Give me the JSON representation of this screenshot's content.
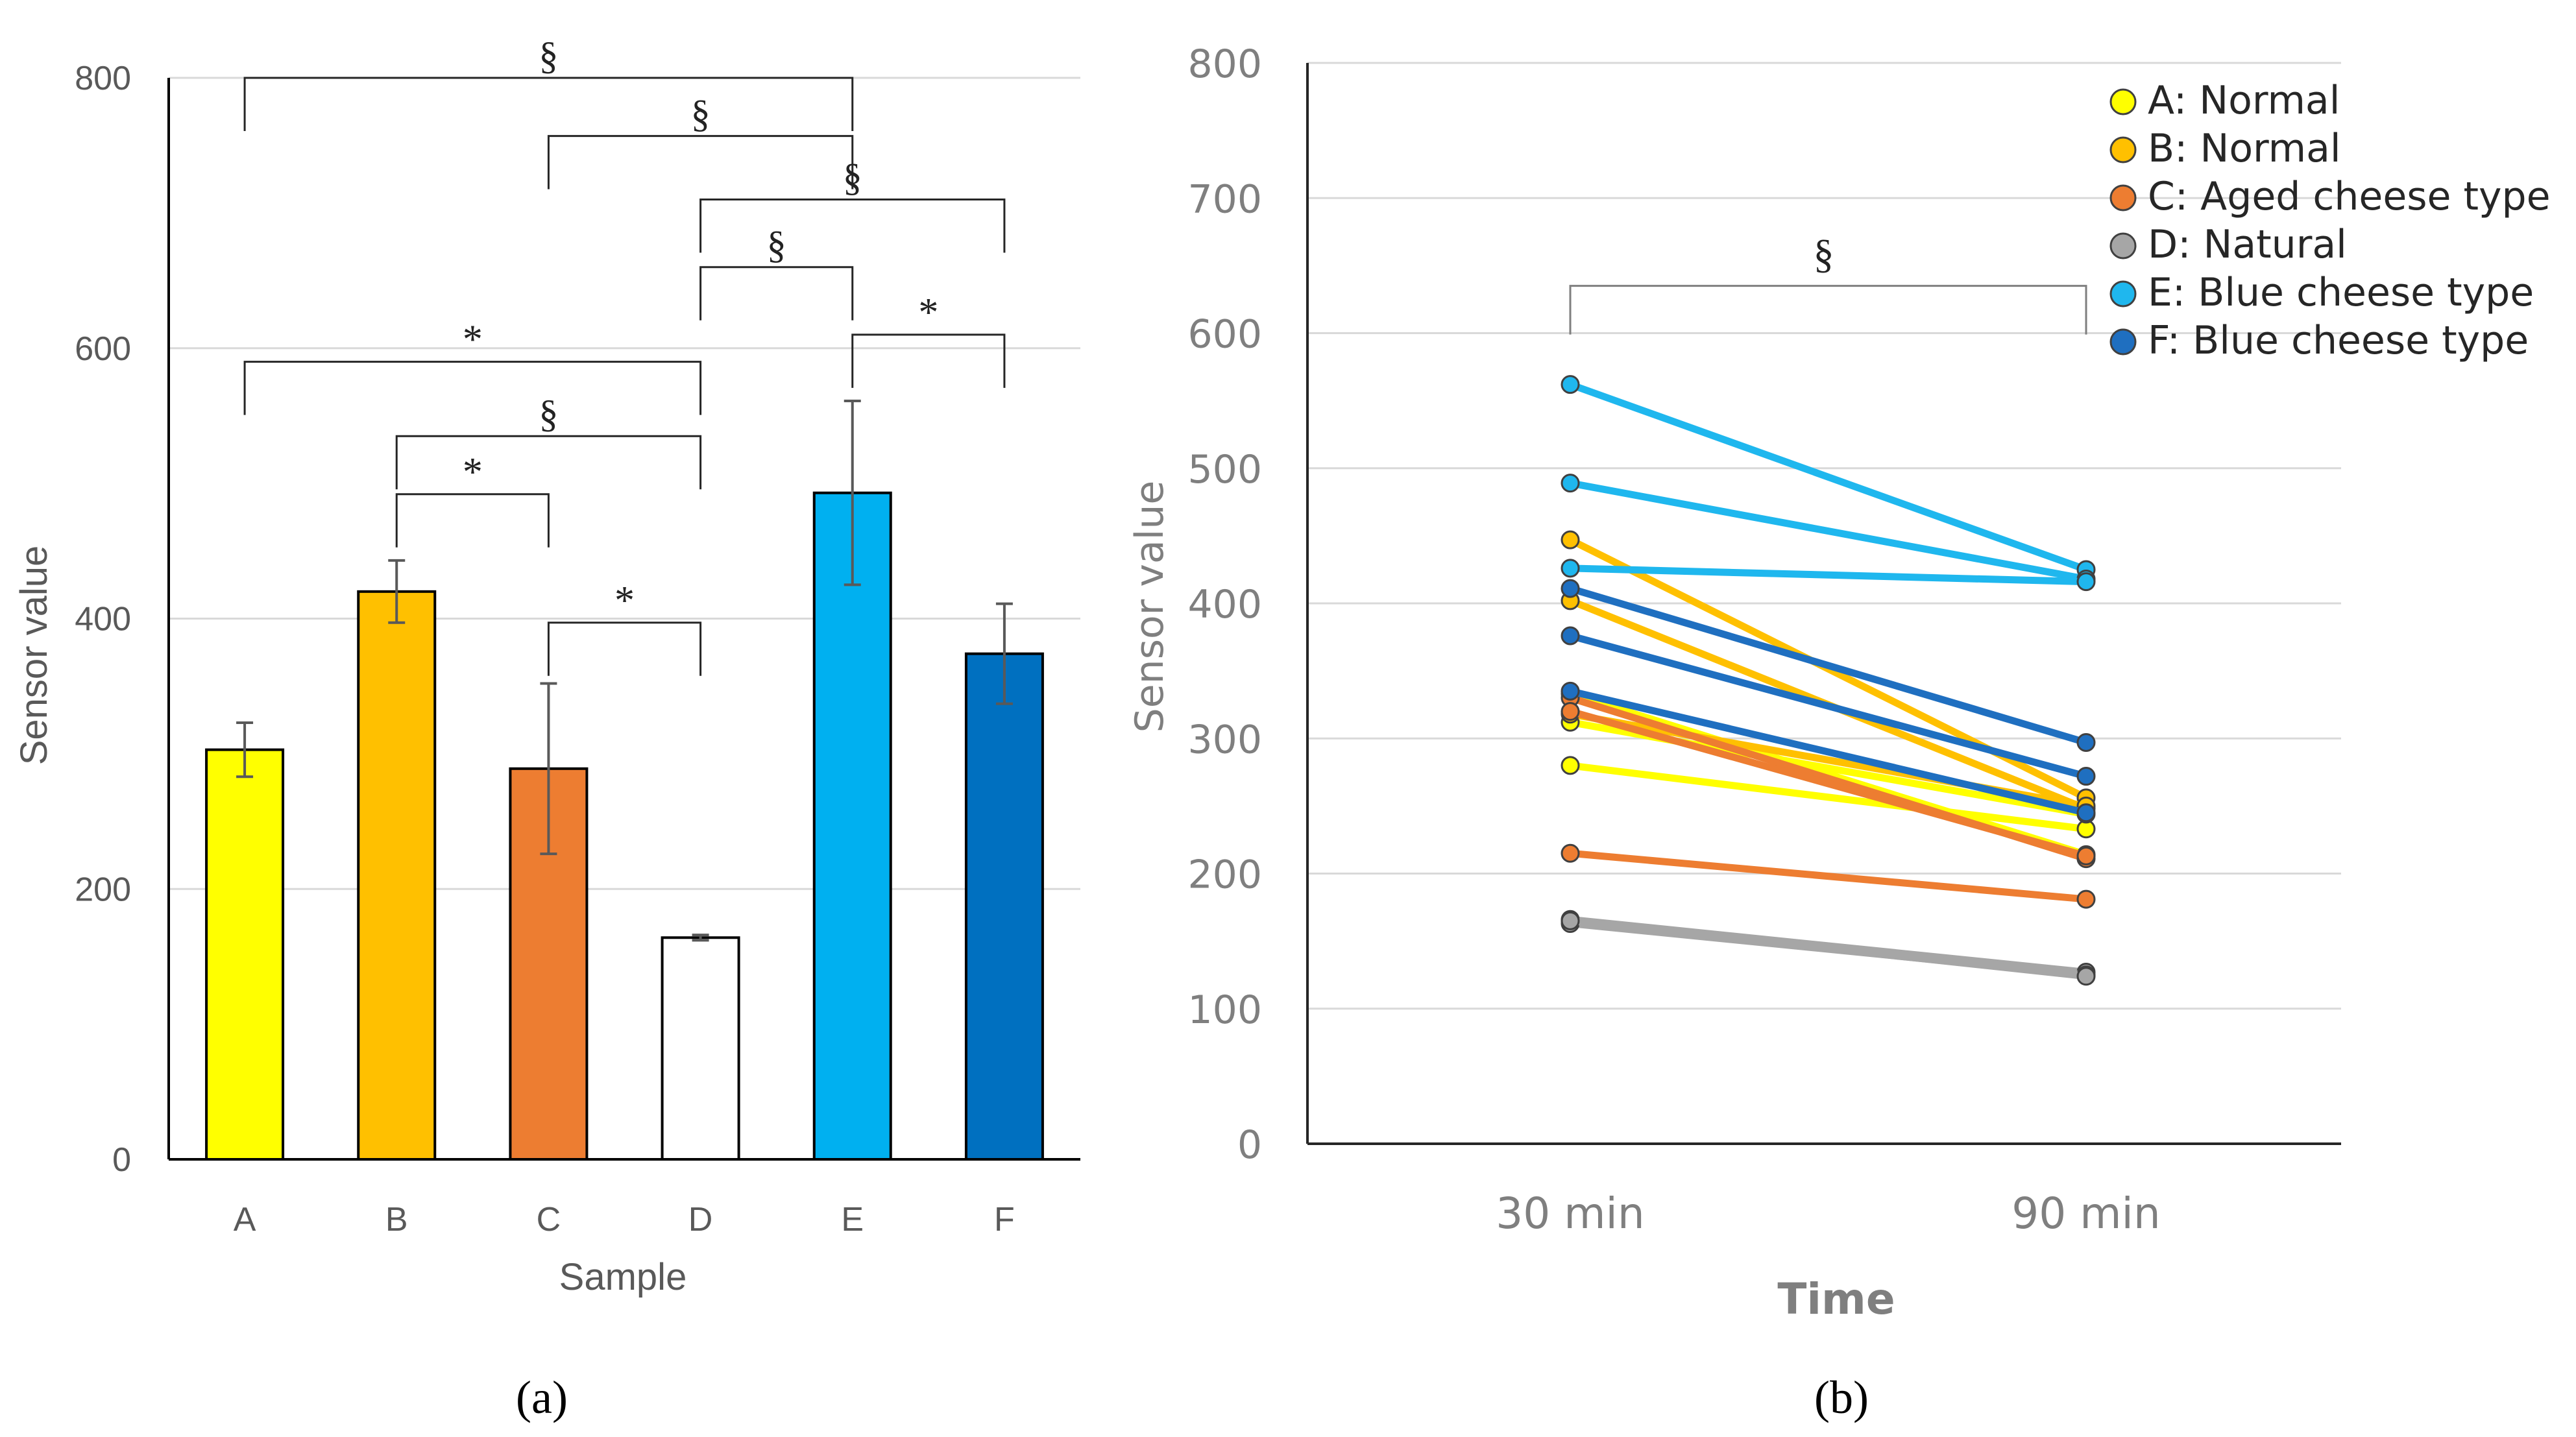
{
  "chart_data": [
    {
      "panel": "a",
      "type": "bar",
      "caption": "(a)",
      "title": "",
      "xlabel": "Sample",
      "ylabel": "Sensor value",
      "ylim": [
        0,
        800
      ],
      "yticks": [
        "0",
        "200",
        "400",
        "600",
        "800"
      ],
      "categories": [
        "A",
        "B",
        "C",
        "D",
        "E",
        "F"
      ],
      "values": [
        303,
        420,
        289,
        164,
        493,
        374
      ],
      "errors": [
        20,
        23,
        63,
        2,
        68,
        37
      ],
      "colors": [
        "#FFFF00",
        "#FFC000",
        "#ED7D31",
        "#FFFFFF",
        "#00B0F0",
        "#0070C0"
      ],
      "grid": true,
      "significance": [
        {
          "from": "A",
          "to": "E",
          "level": 800,
          "label": "§"
        },
        {
          "from": "C",
          "to": "E",
          "level": 757,
          "label": "§"
        },
        {
          "from": "D",
          "to": "F",
          "level": 710,
          "label": "§"
        },
        {
          "from": "D",
          "to": "E",
          "level": 660,
          "label": "§"
        },
        {
          "from": "E",
          "to": "F",
          "level": 610,
          "label": "*"
        },
        {
          "from": "A",
          "to": "D",
          "level": 590,
          "label": "*"
        },
        {
          "from": "B",
          "to": "D",
          "level": 535,
          "label": "§"
        },
        {
          "from": "B",
          "to": "C",
          "level": 492,
          "label": "*"
        },
        {
          "from": "C",
          "to": "D",
          "level": 397,
          "label": "*"
        }
      ]
    },
    {
      "panel": "b",
      "type": "line",
      "caption": "(b)",
      "title": "",
      "xlabel": "Time",
      "ylabel": "Sensor value",
      "ylim": [
        0,
        800
      ],
      "yticks": [
        "0",
        "100",
        "200",
        "300",
        "400",
        "500",
        "600",
        "700",
        "800"
      ],
      "x": [
        "30 min",
        "90 min"
      ],
      "grid": true,
      "legend_position": "top-right",
      "series": [
        {
          "name": "A: Normal",
          "color": "#FFFF00",
          "lines": [
            [
              280,
              233
            ],
            [
              312,
              244
            ],
            [
              333,
              214
            ]
          ]
        },
        {
          "name": "B: Normal",
          "color": "#FFC000",
          "lines": [
            [
              447,
              256
            ],
            [
              402,
              248
            ],
            [
              318,
              250
            ]
          ]
        },
        {
          "name": "C: Aged cheese type",
          "color": "#ED7D31",
          "lines": [
            [
              215,
              181
            ],
            [
              330,
              211
            ],
            [
              320,
              213
            ]
          ]
        },
        {
          "name": "D: Natural",
          "color": "#A6A6A6",
          "lines": [
            [
              166,
              127
            ],
            [
              163,
              125
            ],
            [
              165,
              124
            ]
          ]
        },
        {
          "name": "E: Blue cheese type",
          "color": "#1FB7EE",
          "lines": [
            [
              562,
              425
            ],
            [
              489,
              418
            ],
            [
              426,
              416
            ]
          ]
        },
        {
          "name": "F: Blue cheese type",
          "color": "#1F6FC0",
          "lines": [
            [
              411,
              297
            ],
            [
              376,
              272
            ],
            [
              335,
              245
            ]
          ]
        }
      ],
      "significance": [
        {
          "from": "30 min",
          "to": "90 min",
          "level": 635,
          "label": "§"
        }
      ]
    }
  ]
}
